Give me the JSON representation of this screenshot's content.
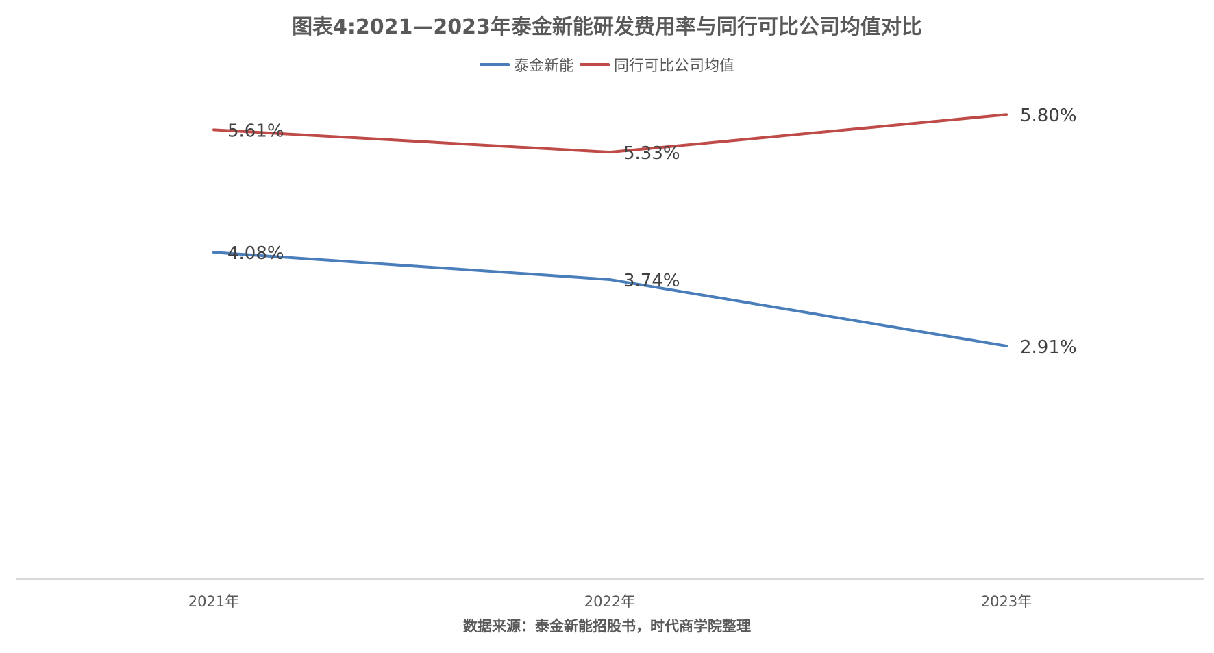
{
  "chart_data": {
    "type": "line",
    "title": "图表4:2021—2023年泰金新能研发费用率与同行可比公司均值对比",
    "categories": [
      "2021年",
      "2022年",
      "2023年"
    ],
    "series": [
      {
        "name": "泰金新能",
        "values": [
          4.08,
          3.74,
          2.91
        ],
        "labels": [
          "4.08%",
          "3.74%",
          "2.91%"
        ],
        "color": "#4a7ebb"
      },
      {
        "name": "同行可比公司均值",
        "values": [
          5.61,
          5.33,
          5.8
        ],
        "labels": [
          "5.61%",
          "5.33%",
          "5.80%"
        ],
        "color": "#be4b48"
      }
    ],
    "ylim": [
      0,
      7
    ],
    "grid": false,
    "legend": "top",
    "source": "数据来源：泰金新能招股书，时代商学院整理"
  }
}
